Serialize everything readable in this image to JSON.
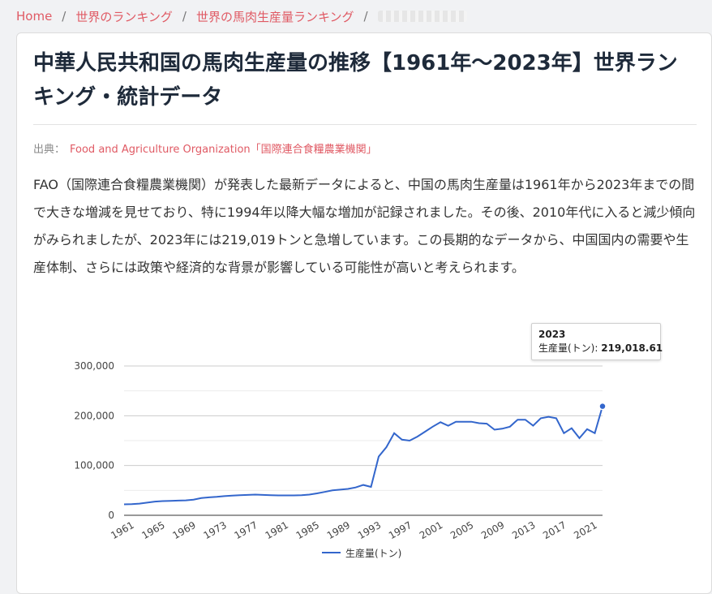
{
  "breadcrumb": {
    "home": "Home",
    "rankings": "世界のランキング",
    "horse_meat_ranking": "世界の馬肉生産量ランキング",
    "separator": "/"
  },
  "article": {
    "title": "中華人民共和国の馬肉生産量の推移【1961年～2023年】世界ランキング・統計データ",
    "source_label": "出典：",
    "source_link": "Food and Agriculture Organization「国際連合食糧農業機関」",
    "description": "FAO（国際連合食糧農業機関）が発表した最新データによると、中国の馬肉生産量は1961年から2023年までの間で大きな増減を見せており、特に1994年以降大幅な増加が記録されました。その後、2010年代に入ると減少傾向がみられましたが、2023年には219,019トンと急増しています。この長期的なデータから、中国国内の需要や生産体制、さらには政策や経済的な背景が影響している可能性が高いと考えられます。"
  },
  "chart_data": {
    "type": "line",
    "title": "",
    "xlabel": "",
    "ylabel": "",
    "ylim": [
      0,
      300000
    ],
    "yticks": [
      0,
      100000,
      200000,
      300000
    ],
    "ytick_labels": [
      "0",
      "100,000",
      "200,000",
      "300,000"
    ],
    "xtick_labels": [
      "1961",
      "1965",
      "1969",
      "1973",
      "1977",
      "1981",
      "1985",
      "1989",
      "1993",
      "1997",
      "2001",
      "2005",
      "2009",
      "2013",
      "2017",
      "2021"
    ],
    "grid": true,
    "legend": "bottom",
    "line_color": "#3366cc",
    "series": [
      {
        "name": "生産量(トン)",
        "x": [
          1961,
          1962,
          1963,
          1964,
          1965,
          1966,
          1967,
          1968,
          1969,
          1970,
          1971,
          1972,
          1973,
          1974,
          1975,
          1976,
          1977,
          1978,
          1979,
          1980,
          1981,
          1982,
          1983,
          1984,
          1985,
          1986,
          1987,
          1988,
          1989,
          1990,
          1991,
          1992,
          1993,
          1994,
          1995,
          1996,
          1997,
          1998,
          1999,
          2000,
          2001,
          2002,
          2003,
          2004,
          2005,
          2006,
          2007,
          2008,
          2009,
          2010,
          2011,
          2012,
          2013,
          2014,
          2015,
          2016,
          2017,
          2018,
          2019,
          2020,
          2021,
          2022,
          2023
        ],
        "values": [
          22000,
          22500,
          23500,
          25500,
          27500,
          28500,
          29000,
          29500,
          30000,
          31500,
          34500,
          36000,
          37000,
          38500,
          39500,
          40500,
          41000,
          41500,
          41000,
          40500,
          40000,
          40000,
          40000,
          40500,
          41500,
          44000,
          47000,
          50000,
          51500,
          53000,
          56000,
          61000,
          57000,
          118000,
          137000,
          165000,
          152000,
          150000,
          158000,
          168000,
          178000,
          187000,
          180000,
          188000,
          188000,
          188000,
          185000,
          184000,
          172000,
          174000,
          178000,
          192000,
          192000,
          180000,
          195000,
          198000,
          195000,
          165000,
          175000,
          155000,
          173000,
          165000,
          219018.61
        ]
      }
    ]
  },
  "tooltip": {
    "year": "2023",
    "label": "生産量(トン): ",
    "value": "219,018.61"
  }
}
